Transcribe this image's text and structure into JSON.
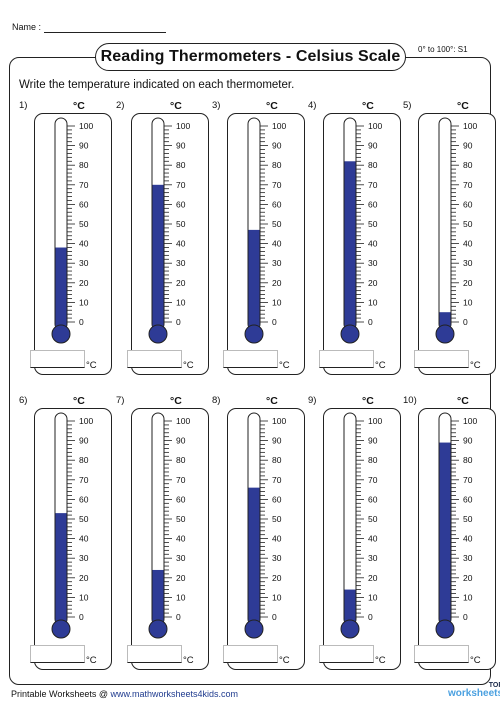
{
  "header": {
    "name_label": "Name :",
    "title": "Reading Thermometers - Celsius Scale",
    "code": "0° to 100°: S1"
  },
  "instructions": "Write the temperature indicated on each thermometer.",
  "unit": "°C",
  "scale_labels": [
    "100",
    "90",
    "80",
    "70",
    "60",
    "50",
    "40",
    "30",
    "20",
    "10",
    "0"
  ],
  "mercury_color": "#2e3b96",
  "thermometers": [
    {
      "number": "1)",
      "value": 38
    },
    {
      "number": "2)",
      "value": 70
    },
    {
      "number": "3)",
      "value": 47
    },
    {
      "number": "4)",
      "value": 82
    },
    {
      "number": "5)",
      "value": 5
    },
    {
      "number": "6)",
      "value": 53
    },
    {
      "number": "7)",
      "value": 24
    },
    {
      "number": "8)",
      "value": 66
    },
    {
      "number": "9)",
      "value": 14
    },
    {
      "number": "10)",
      "value": 89
    }
  ],
  "footer": {
    "prefix": "Printable Worksheets @ ",
    "site": "www.mathworksheets4kids.com"
  },
  "brand": {
    "line1": "TOP",
    "line2": "worksheets"
  }
}
